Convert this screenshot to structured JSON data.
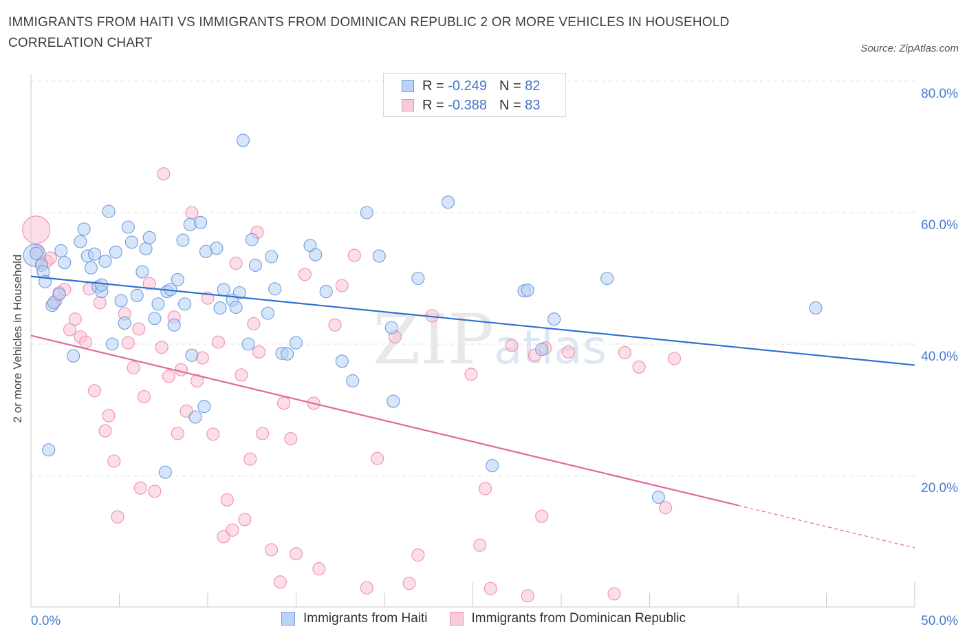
{
  "title": "IMMIGRANTS FROM HAITI VS IMMIGRANTS FROM DOMINICAN REPUBLIC 2 OR MORE VEHICLES IN HOUSEHOLD CORRELATION CHART",
  "source": "Source: ZipAtlas.com",
  "watermark": {
    "zip": "ZIP",
    "atlas": "atlas"
  },
  "legend": [
    {
      "r_label": "R =",
      "r_value": "-0.249",
      "n_label": "N =",
      "n_value": "82",
      "color": "#a9c5ef"
    },
    {
      "r_label": "R =",
      "r_value": "-0.388",
      "n_label": "N =",
      "n_value": "83",
      "color": "#f5b8cb"
    }
  ],
  "chart_data": {
    "type": "scatter",
    "title": "IMMIGRANTS FROM HAITI VS IMMIGRANTS FROM DOMINICAN REPUBLIC 2 OR MORE VEHICLES IN HOUSEHOLD CORRELATION CHART",
    "xlabel": "",
    "ylabel": "2 or more Vehicles in Household",
    "xlim": [
      0,
      50
    ],
    "ylim": [
      0,
      80
    ],
    "x_tick_labels": [
      "0.0%",
      "50.0%"
    ],
    "y_tick_labels": [
      "20.0%",
      "40.0%",
      "60.0%",
      "80.0%"
    ],
    "y_ticks": [
      20,
      40,
      60,
      80
    ],
    "grid": true,
    "legend_position": "top-center",
    "series": [
      {
        "name": "Immigrants from Haiti",
        "color": "#6e9be0",
        "fill": "#b7cff3",
        "trend": {
          "x": [
            0,
            50
          ],
          "y": [
            50.3,
            36.8
          ],
          "dashed_from": null
        },
        "points": [
          [
            0.2,
            53.5
          ],
          [
            0.6,
            52.0
          ],
          [
            0.7,
            51.0
          ],
          [
            0.8,
            49.5
          ],
          [
            1.2,
            45.9
          ],
          [
            1.3,
            46.3
          ],
          [
            1.6,
            47.6
          ],
          [
            1.7,
            54.2
          ],
          [
            1.9,
            52.4
          ],
          [
            2.4,
            38.2
          ],
          [
            2.8,
            55.6
          ],
          [
            3.0,
            57.5
          ],
          [
            3.2,
            53.4
          ],
          [
            3.4,
            51.6
          ],
          [
            3.6,
            53.7
          ],
          [
            3.8,
            48.7
          ],
          [
            4.0,
            48.0
          ],
          [
            4.2,
            52.6
          ],
          [
            4.4,
            60.2
          ],
          [
            4.6,
            40.0
          ],
          [
            4.8,
            54.0
          ],
          [
            5.1,
            46.6
          ],
          [
            5.3,
            43.2
          ],
          [
            5.5,
            57.8
          ],
          [
            5.7,
            55.5
          ],
          [
            6.0,
            47.4
          ],
          [
            6.3,
            51.0
          ],
          [
            6.5,
            54.5
          ],
          [
            6.7,
            56.2
          ],
          [
            7.0,
            43.9
          ],
          [
            7.2,
            46.1
          ],
          [
            7.7,
            48.0
          ],
          [
            7.9,
            48.3
          ],
          [
            8.1,
            42.9
          ],
          [
            8.3,
            49.8
          ],
          [
            8.6,
            55.8
          ],
          [
            8.7,
            46.1
          ],
          [
            9.0,
            58.2
          ],
          [
            9.1,
            38.3
          ],
          [
            9.3,
            28.9
          ],
          [
            9.6,
            58.5
          ],
          [
            9.8,
            30.5
          ],
          [
            9.9,
            54.1
          ],
          [
            10.5,
            54.6
          ],
          [
            10.7,
            45.5
          ],
          [
            10.9,
            48.3
          ],
          [
            11.4,
            46.7
          ],
          [
            11.6,
            45.6
          ],
          [
            11.8,
            47.8
          ],
          [
            12.0,
            71.0
          ],
          [
            12.3,
            40.0
          ],
          [
            12.5,
            55.9
          ],
          [
            12.7,
            52.0
          ],
          [
            13.4,
            44.7
          ],
          [
            13.6,
            53.3
          ],
          [
            13.8,
            48.4
          ],
          [
            14.2,
            38.6
          ],
          [
            14.5,
            38.5
          ],
          [
            15.0,
            40.2
          ],
          [
            15.8,
            55.0
          ],
          [
            16.1,
            53.6
          ],
          [
            16.7,
            48.0
          ],
          [
            17.6,
            37.4
          ],
          [
            18.2,
            34.4
          ],
          [
            19.0,
            60.0
          ],
          [
            19.7,
            53.4
          ],
          [
            20.4,
            42.5
          ],
          [
            20.5,
            31.3
          ],
          [
            21.9,
            50.0
          ],
          [
            23.6,
            61.6
          ],
          [
            26.1,
            21.5
          ],
          [
            27.9,
            48.1
          ],
          [
            28.1,
            48.2
          ],
          [
            28.9,
            39.2
          ],
          [
            29.6,
            43.8
          ],
          [
            32.6,
            50.0
          ],
          [
            35.5,
            16.7
          ],
          [
            44.4,
            45.5
          ],
          [
            1.0,
            23.9
          ],
          [
            7.6,
            20.5
          ],
          [
            4.0,
            49.0
          ],
          [
            0.3,
            53.8
          ]
        ]
      },
      {
        "name": "Immigrants from Dominican Republic",
        "color": "#ef8fae",
        "fill": "#f8c3d4",
        "trend": {
          "x": [
            0,
            50
          ],
          "y": [
            41.3,
            9.0
          ],
          "dashed_from": 40
        },
        "points": [
          [
            0.3,
            57.4
          ],
          [
            0.4,
            54.2
          ],
          [
            0.6,
            52.3
          ],
          [
            0.9,
            52.6
          ],
          [
            1.1,
            53.1
          ],
          [
            1.4,
            46.6
          ],
          [
            1.6,
            47.8
          ],
          [
            1.9,
            48.3
          ],
          [
            2.2,
            42.2
          ],
          [
            2.5,
            43.8
          ],
          [
            2.8,
            41.1
          ],
          [
            3.1,
            40.3
          ],
          [
            3.3,
            48.4
          ],
          [
            3.6,
            32.9
          ],
          [
            3.9,
            46.3
          ],
          [
            4.2,
            26.8
          ],
          [
            4.4,
            29.1
          ],
          [
            4.7,
            22.2
          ],
          [
            4.9,
            13.7
          ],
          [
            5.3,
            44.6
          ],
          [
            5.5,
            40.2
          ],
          [
            5.8,
            36.4
          ],
          [
            6.1,
            42.3
          ],
          [
            6.2,
            18.1
          ],
          [
            6.4,
            32.0
          ],
          [
            6.7,
            49.2
          ],
          [
            7.0,
            17.6
          ],
          [
            7.4,
            39.5
          ],
          [
            7.5,
            65.9
          ],
          [
            7.8,
            35.1
          ],
          [
            8.1,
            44.1
          ],
          [
            8.3,
            26.4
          ],
          [
            8.5,
            36.1
          ],
          [
            8.8,
            29.8
          ],
          [
            9.1,
            60.0
          ],
          [
            9.4,
            34.4
          ],
          [
            9.7,
            37.9
          ],
          [
            10.0,
            47.0
          ],
          [
            10.3,
            26.3
          ],
          [
            10.6,
            40.3
          ],
          [
            10.9,
            10.7
          ],
          [
            11.1,
            16.3
          ],
          [
            11.4,
            11.7
          ],
          [
            11.6,
            52.3
          ],
          [
            11.9,
            35.3
          ],
          [
            12.1,
            13.3
          ],
          [
            12.4,
            22.5
          ],
          [
            12.6,
            43.1
          ],
          [
            12.9,
            38.8
          ],
          [
            13.1,
            26.4
          ],
          [
            13.6,
            8.7
          ],
          [
            14.1,
            3.8
          ],
          [
            14.3,
            31.0
          ],
          [
            14.7,
            25.6
          ],
          [
            15.0,
            8.1
          ],
          [
            15.5,
            50.6
          ],
          [
            16.0,
            31.0
          ],
          [
            16.3,
            5.8
          ],
          [
            17.2,
            42.9
          ],
          [
            17.6,
            48.9
          ],
          [
            18.3,
            53.5
          ],
          [
            19.0,
            2.9
          ],
          [
            19.6,
            22.6
          ],
          [
            20.6,
            41.1
          ],
          [
            21.4,
            3.6
          ],
          [
            21.9,
            7.9
          ],
          [
            22.7,
            44.3
          ],
          [
            24.9,
            35.4
          ],
          [
            25.4,
            9.4
          ],
          [
            25.7,
            18.0
          ],
          [
            26.0,
            2.8
          ],
          [
            27.2,
            39.8
          ],
          [
            28.1,
            1.7
          ],
          [
            28.5,
            38.3
          ],
          [
            28.9,
            13.8
          ],
          [
            29.1,
            39.4
          ],
          [
            30.4,
            38.8
          ],
          [
            33.0,
            2.0
          ],
          [
            33.6,
            38.7
          ],
          [
            34.4,
            36.5
          ],
          [
            35.9,
            15.1
          ],
          [
            36.4,
            37.8
          ],
          [
            12.8,
            57.0
          ]
        ]
      }
    ]
  },
  "bottom_legend": [
    {
      "label": "Immigrants from Haiti",
      "color": "#a9c5ef"
    },
    {
      "label": "Immigrants from Dominican Republic",
      "color": "#f5b8cb"
    }
  ]
}
